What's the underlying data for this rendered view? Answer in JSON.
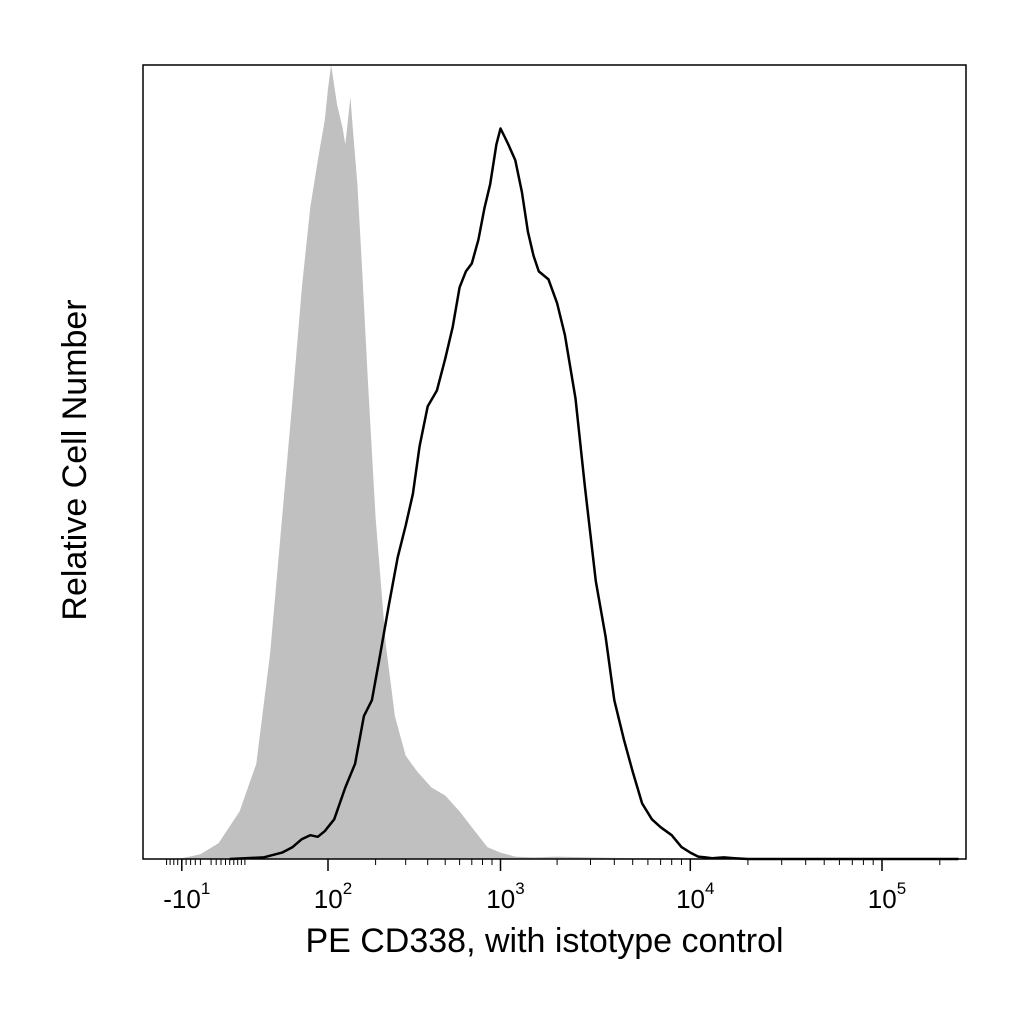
{
  "chart_data": {
    "type": "area",
    "title": "",
    "xlabel": "PE CD338, with istotype control",
    "ylabel": "Relative Cell Number",
    "x_scale": "biexponential",
    "xlim": [
      -10,
      250000
    ],
    "ylim": [
      0,
      1
    ],
    "grid": false,
    "legend": "none",
    "x_ticks": [
      {
        "base": "-10",
        "exp": "1",
        "value": -10
      },
      {
        "base": "10",
        "exp": "2",
        "value": 100
      },
      {
        "base": "10",
        "exp": "3",
        "value": 1000
      },
      {
        "base": "10",
        "exp": "4",
        "value": 10000
      },
      {
        "base": "10",
        "exp": "5",
        "value": 100000
      }
    ],
    "series": [
      {
        "style": "filled",
        "color": "#c0c0c0",
        "x": [
          -12,
          -8,
          -2,
          5,
          15,
          25,
          35,
          45,
          55,
          65,
          75,
          85,
          95,
          100,
          105,
          115,
          125,
          130,
          135,
          140,
          145,
          155,
          165,
          180,
          200,
          230,
          260,
          300,
          350,
          420,
          500,
          600,
          700,
          850,
          1000,
          1200,
          1500,
          2000,
          3000,
          5000,
          10000,
          50000,
          250000
        ],
        "y": [
          0,
          0.002,
          0.006,
          0.02,
          0.06,
          0.12,
          0.26,
          0.43,
          0.58,
          0.72,
          0.82,
          0.88,
          0.93,
          0.97,
          1.0,
          0.95,
          0.92,
          0.9,
          0.93,
          0.96,
          0.92,
          0.85,
          0.75,
          0.6,
          0.43,
          0.27,
          0.18,
          0.13,
          0.11,
          0.09,
          0.08,
          0.06,
          0.04,
          0.015,
          0.008,
          0.003,
          0.002,
          0.003,
          0.002,
          0.001,
          0.001,
          0,
          0
        ]
      },
      {
        "style": "line",
        "color": "#000000",
        "x": [
          10,
          30,
          45,
          55,
          65,
          75,
          85,
          95,
          110,
          130,
          150,
          170,
          190,
          210,
          240,
          270,
          300,
          330,
          360,
          400,
          450,
          500,
          550,
          600,
          650,
          700,
          760,
          820,
          880,
          950,
          1000,
          1050,
          1100,
          1200,
          1300,
          1400,
          1500,
          1600,
          1800,
          2000,
          2200,
          2500,
          2800,
          3200,
          3600,
          4000,
          4500,
          5000,
          5600,
          6300,
          7000,
          8000,
          9000,
          10000,
          11000,
          12000,
          13000,
          14000,
          15000,
          17000,
          20000,
          30000,
          50000,
          100000,
          250000
        ],
        "y": [
          0,
          0.002,
          0.008,
          0.015,
          0.025,
          0.03,
          0.028,
          0.035,
          0.05,
          0.09,
          0.12,
          0.18,
          0.2,
          0.25,
          0.32,
          0.38,
          0.42,
          0.46,
          0.52,
          0.57,
          0.59,
          0.63,
          0.67,
          0.72,
          0.74,
          0.75,
          0.78,
          0.82,
          0.85,
          0.9,
          0.92,
          0.91,
          0.9,
          0.88,
          0.84,
          0.79,
          0.76,
          0.74,
          0.73,
          0.7,
          0.66,
          0.58,
          0.47,
          0.35,
          0.28,
          0.2,
          0.15,
          0.11,
          0.07,
          0.05,
          0.04,
          0.03,
          0.015,
          0.008,
          0.003,
          0.002,
          0.001,
          0.0015,
          0.002,
          0.001,
          0,
          0,
          0,
          0,
          0
        ]
      }
    ]
  }
}
